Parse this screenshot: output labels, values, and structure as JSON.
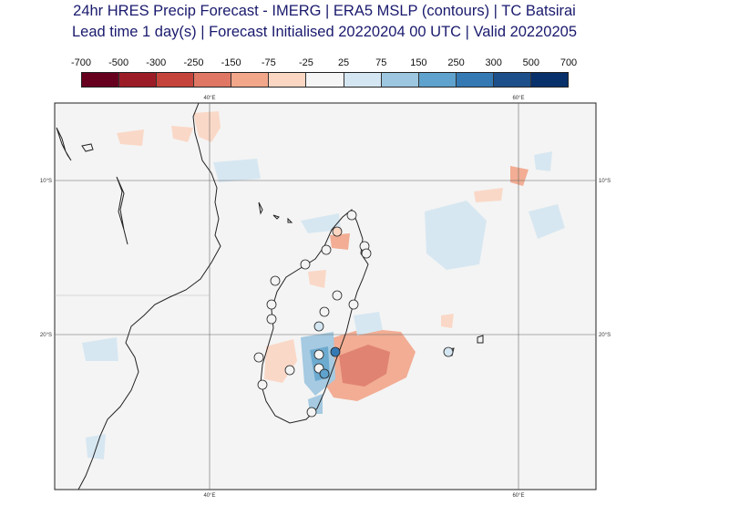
{
  "title": {
    "line1": "24hr HRES Precip Forecast - IMERG | ERA5 MSLP (contours) | TC Batsirai",
    "line2": "Lead time 1 day(s) | Forecast Initialised 20220204 00 UTC | Valid 20220205"
  },
  "colorbar": {
    "labels": [
      "-700",
      "-500",
      "-300",
      "-250",
      "-150",
      "-75",
      "-25",
      "25",
      "75",
      "150",
      "250",
      "300",
      "500",
      "700"
    ],
    "colors": [
      "#67001f",
      "#9b1c26",
      "#c4443b",
      "#df7764",
      "#f2a68a",
      "#fbd6c3",
      "#f5f5f5",
      "#d4e6f1",
      "#9dc6e0",
      "#5fa2cd",
      "#3579b4",
      "#1d4f8a",
      "#08306b"
    ]
  },
  "map": {
    "lon_labels": [
      "40°E",
      "60°E"
    ],
    "lat_labels": [
      "10°S",
      "20°S"
    ]
  }
}
